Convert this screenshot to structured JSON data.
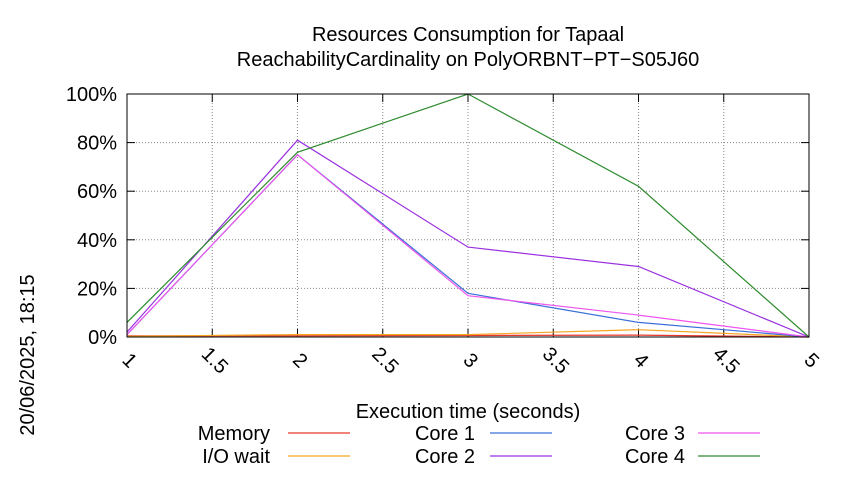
{
  "chart_data": {
    "type": "line",
    "title_line1": "Resources Consumption for Tapaal",
    "title_line2": "ReachabilityCardinality on PolyORBNT−PT−S05J60",
    "xlabel": "Execution time (seconds)",
    "ylabel": "",
    "side_label": "20/06/2025, 18:15",
    "xlim": [
      1,
      5
    ],
    "ylim": [
      0,
      100
    ],
    "x_ticks": [
      1,
      1.5,
      2,
      2.5,
      3,
      3.5,
      4,
      4.5,
      5
    ],
    "x_tick_labels": [
      "1",
      "1.5",
      "2",
      "2.5",
      "3",
      "3.5",
      "4",
      "4.5",
      "5"
    ],
    "y_ticks": [
      0,
      20,
      40,
      60,
      80,
      100
    ],
    "y_tick_labels": [
      "0%",
      "20%",
      "40%",
      "60%",
      "80%",
      "100%"
    ],
    "grid": true,
    "legend_position": "bottom",
    "x": [
      1,
      2,
      3,
      4,
      5
    ],
    "series": [
      {
        "name": "Memory",
        "color": "#e8372a",
        "values": [
          0.5,
          0.5,
          0.6,
          0.8,
          0
        ]
      },
      {
        "name": "I/O wait",
        "color": "#f5a623",
        "values": [
          0.3,
          1.0,
          1.0,
          3.0,
          0
        ]
      },
      {
        "name": "Core 1",
        "color": "#3a6fd8",
        "values": [
          1,
          75,
          18,
          6,
          0
        ]
      },
      {
        "name": "Core 2",
        "color": "#9b30e0",
        "values": [
          2,
          81,
          37,
          29,
          0
        ]
      },
      {
        "name": "Core 3",
        "color": "#ee55ee",
        "values": [
          1,
          75,
          17,
          9,
          0
        ]
      },
      {
        "name": "Core 4",
        "color": "#2e8b2e",
        "values": [
          6,
          76,
          100,
          62,
          0
        ]
      }
    ]
  }
}
